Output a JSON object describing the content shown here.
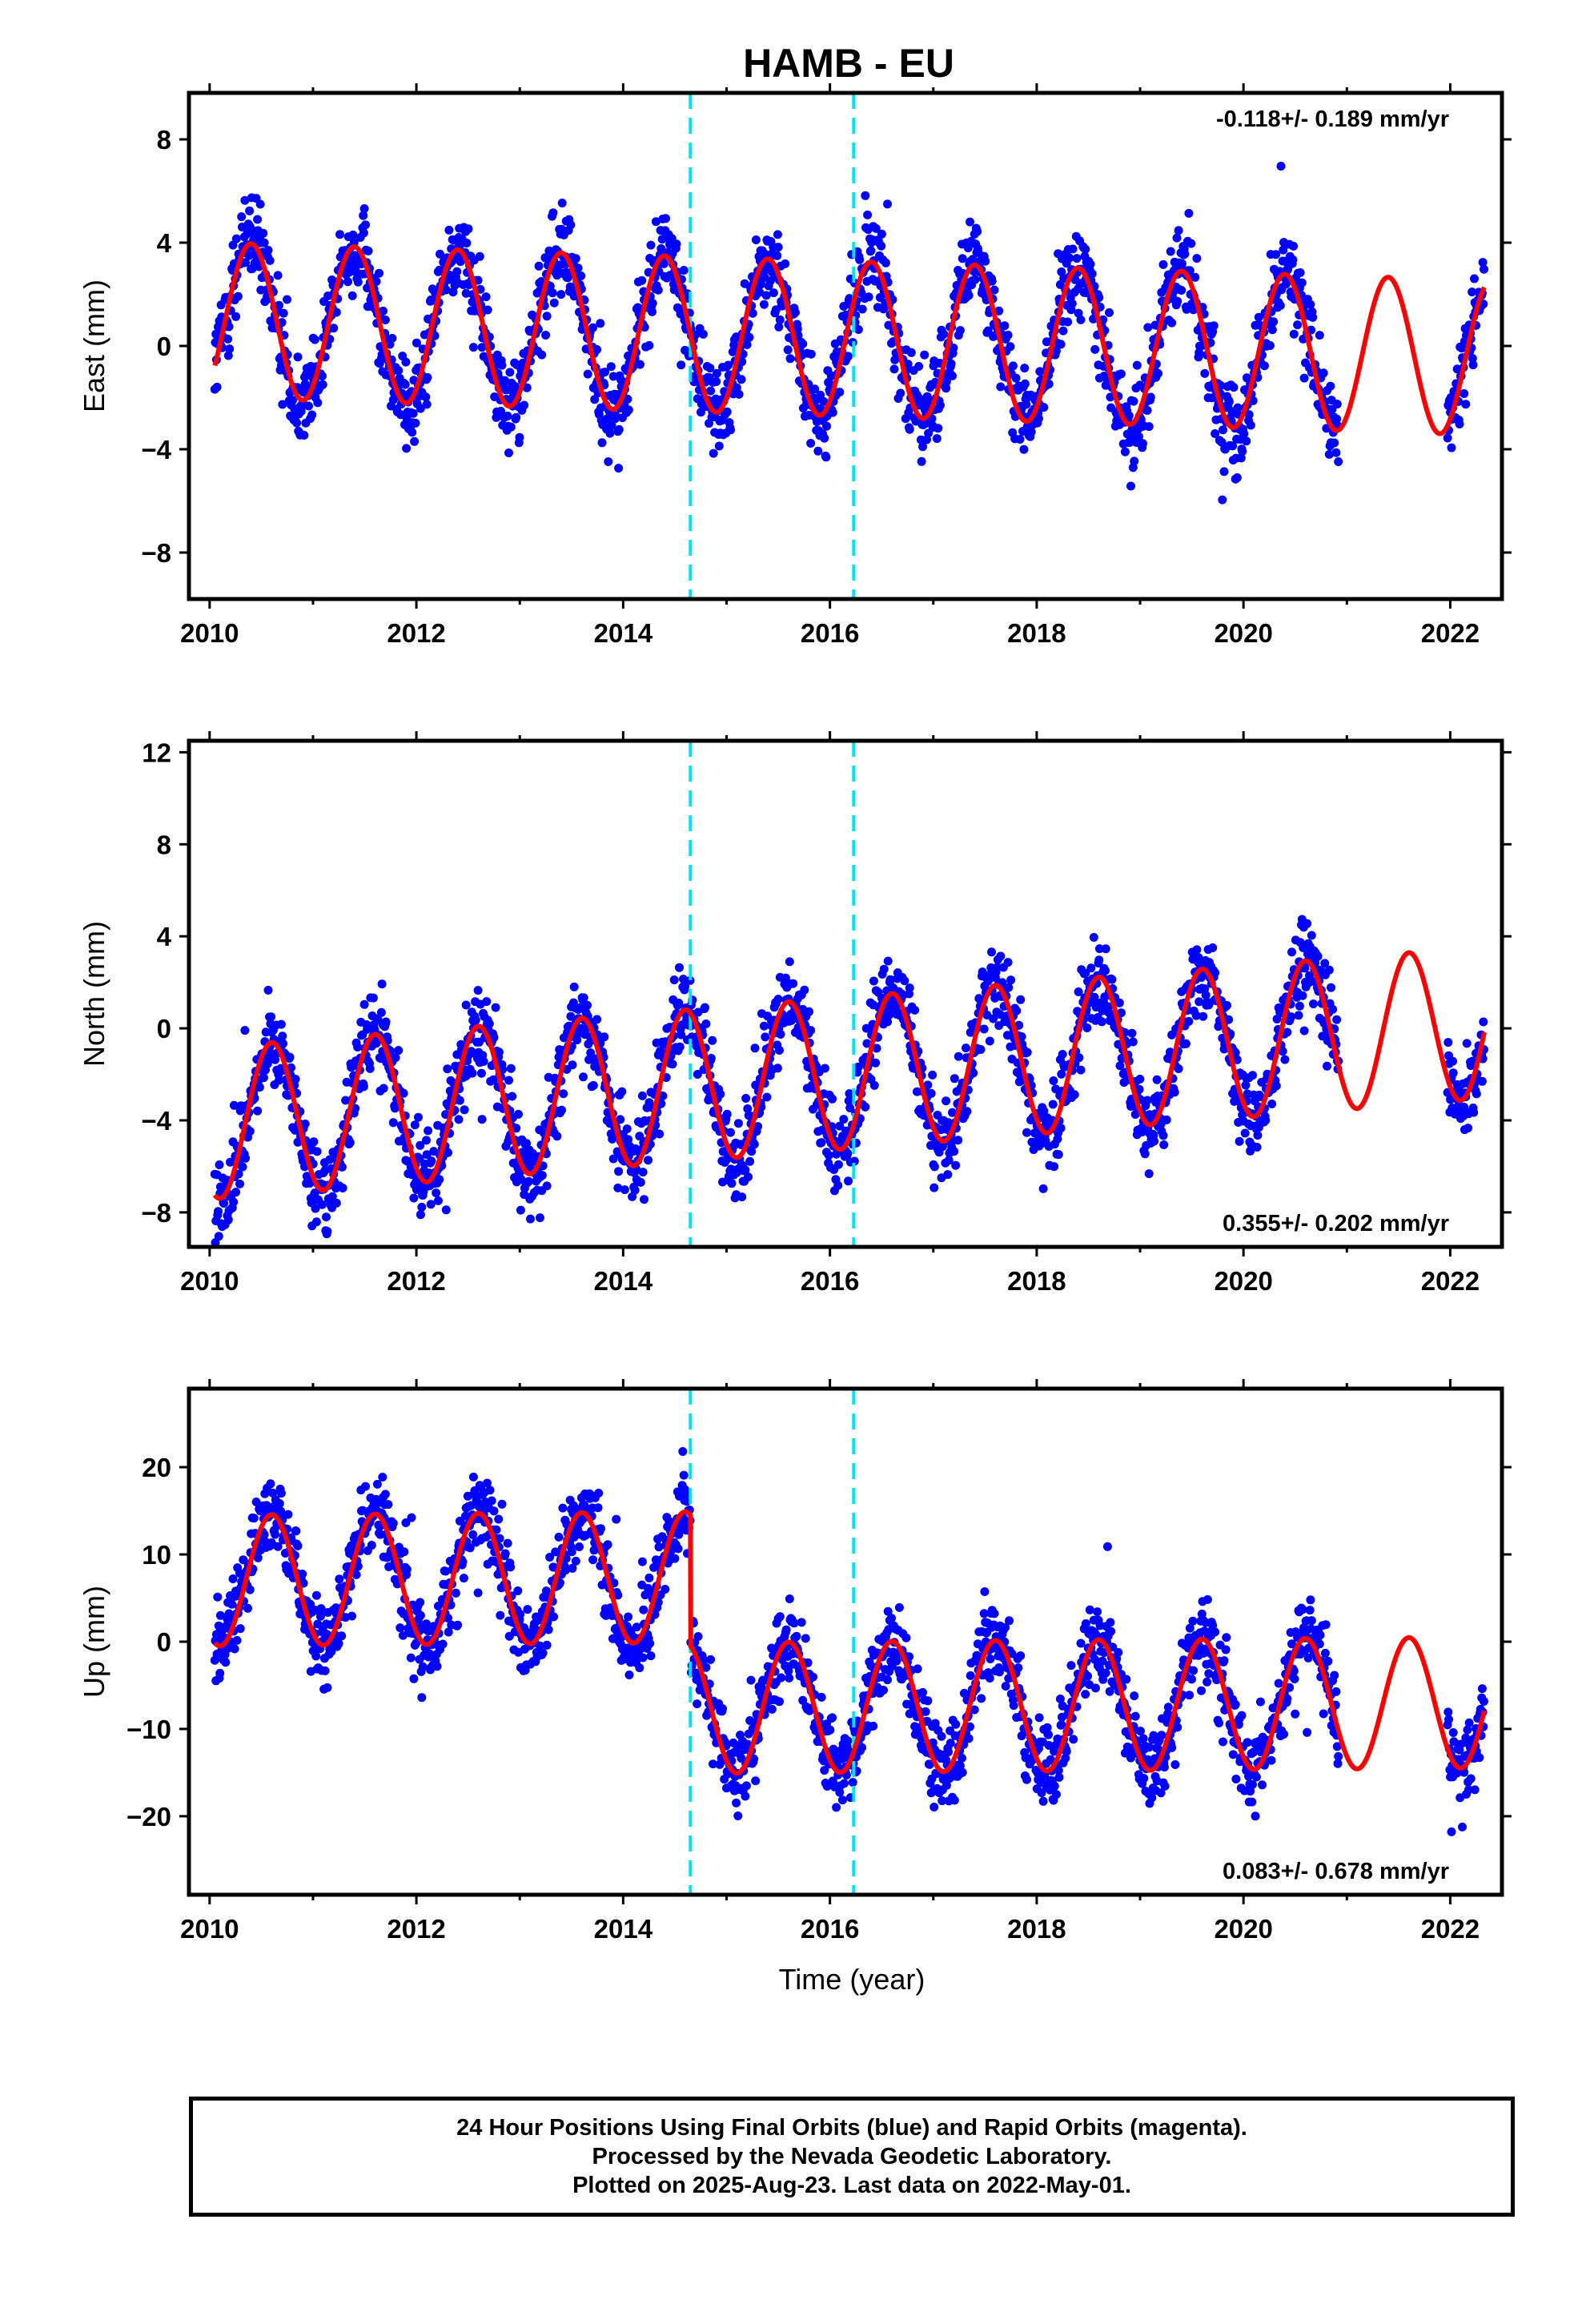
{
  "page": {
    "footer_lines": [
      "24 Hour Positions Using Final Orbits (blue) and Rapid Orbits (magenta).",
      "Processed by the Nevada Geodetic Laboratory.",
      "Plotted on 2025-Aug-23. Last data on 2022-May-01."
    ]
  },
  "colors": {
    "points": "#0000ff",
    "model": "#ff0000",
    "breaks": "#00e5ee",
    "frame": "#000000"
  },
  "chart_data": [
    {
      "type": "scatter",
      "title": "HAMB - EU",
      "xlabel": "",
      "ylabel": "East (mm)",
      "xlim": [
        2009.8,
        2022.5
      ],
      "ylim": [
        -9.8,
        9.8
      ],
      "xticks": [
        2010,
        2012,
        2014,
        2016,
        2018,
        2020,
        2022
      ],
      "yticks": [
        -8,
        -4,
        0,
        4,
        8
      ],
      "rate_label": "-0.118+/- 0.189 mm/yr",
      "rate_position": "top-right",
      "break_lines_x": [
        2014.65,
        2016.23
      ],
      "data_range_x": [
        2010.05,
        2022.33
      ],
      "data_gap_x": [
        2020.92,
        2021.97
      ],
      "model": {
        "offset": 0.3,
        "trend": -0.118,
        "amplitude": 3.0,
        "phase": 0.15,
        "steps": []
      },
      "point_scatter": 1.6,
      "series": [
        {
          "name": "Final Orbits",
          "kind": "points"
        },
        {
          "name": "Model",
          "kind": "line"
        }
      ]
    },
    {
      "type": "scatter",
      "title": "",
      "xlabel": "",
      "ylabel": "North (mm)",
      "xlim": [
        2009.8,
        2022.5
      ],
      "ylim": [
        -9.5,
        12.5
      ],
      "xticks": [
        2010,
        2012,
        2014,
        2016,
        2018,
        2020,
        2022
      ],
      "yticks": [
        -8,
        -4,
        0,
        4,
        8,
        12
      ],
      "rate_label": "0.355+/- 0.202 mm/yr",
      "rate_position": "bottom-right",
      "break_lines_x": [
        2014.65,
        2016.23
      ],
      "data_range_x": [
        2010.05,
        2022.33
      ],
      "data_gap_x": [
        2020.92,
        2021.97
      ],
      "model": {
        "offset": -2.0,
        "trend": 0.355,
        "amplitude": 3.3,
        "phase": 0.35,
        "steps": []
      },
      "point_scatter": 1.7,
      "series": [
        {
          "name": "Final Orbits",
          "kind": "points"
        },
        {
          "name": "Model",
          "kind": "line"
        }
      ]
    },
    {
      "type": "scatter",
      "title": "",
      "xlabel": "Time (year)",
      "ylabel": "Up (mm)",
      "xlim": [
        2009.8,
        2022.5
      ],
      "ylim": [
        -29,
        29
      ],
      "xticks": [
        2010,
        2012,
        2014,
        2016,
        2018,
        2020,
        2022
      ],
      "yticks": [
        -20,
        -10,
        0,
        10,
        20
      ],
      "rate_label": "0.083+/- 0.678 mm/yr",
      "rate_position": "bottom-right",
      "break_lines_x": [
        2014.65,
        2016.23
      ],
      "data_range_x": [
        2010.05,
        2022.33
      ],
      "data_gap_x": [
        2020.92,
        2021.97
      ],
      "model": {
        "offset": 7.5,
        "trend": 0.083,
        "amplitude": 7.5,
        "phase": 0.35,
        "steps": [
          {
            "x": 2014.65,
            "dy": -15.0
          }
        ]
      },
      "point_scatter": 4.3,
      "series": [
        {
          "name": "Final Orbits",
          "kind": "points"
        },
        {
          "name": "Model",
          "kind": "line"
        }
      ]
    }
  ]
}
